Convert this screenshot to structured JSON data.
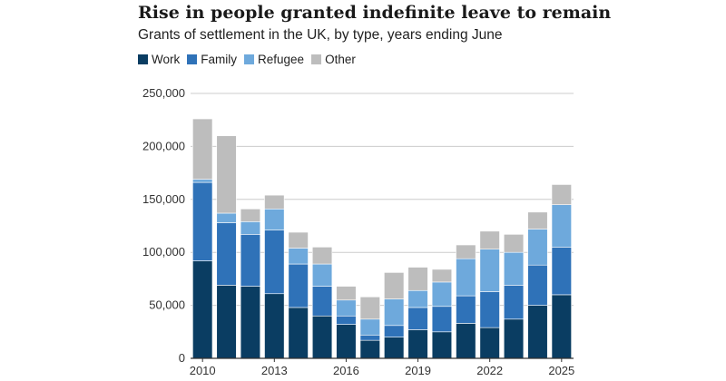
{
  "chart_data": {
    "type": "bar",
    "stacked": true,
    "title": "Rise in people granted indefinite leave to remain",
    "subtitle": "Grants of settlement in the UK, by type, years ending June",
    "xlabel": "",
    "ylabel": "",
    "ylim": [
      0,
      250000
    ],
    "yticks": [
      0,
      50000,
      100000,
      150000,
      200000,
      250000
    ],
    "ytick_labels": [
      "0",
      "50,000",
      "100,000",
      "150,000",
      "200,000",
      "250,000"
    ],
    "xtick_labels": [
      "2010",
      "2013",
      "2016",
      "2019",
      "2022",
      "2025"
    ],
    "categories": [
      "2010",
      "2011",
      "2012",
      "2013",
      "2014",
      "2015",
      "2016",
      "2017",
      "2018",
      "2019",
      "2020",
      "2021",
      "2022",
      "2023",
      "2024",
      "2025"
    ],
    "legend_position": "top-left",
    "grid": true,
    "series": [
      {
        "name": "Work",
        "color": "#0a3d62",
        "values": [
          92000,
          69000,
          68000,
          61000,
          48000,
          40000,
          32000,
          17000,
          20000,
          27000,
          25000,
          33000,
          29000,
          37000,
          50000,
          60000
        ]
      },
      {
        "name": "Family",
        "color": "#2f72b8",
        "values": [
          74000,
          59000,
          49000,
          60000,
          41000,
          28000,
          8000,
          5000,
          11000,
          21000,
          24000,
          26000,
          34000,
          32000,
          38000,
          45000
        ]
      },
      {
        "name": "Refugee",
        "color": "#6ea9dc",
        "values": [
          3000,
          9000,
          12000,
          20000,
          15000,
          21000,
          15000,
          15000,
          25000,
          16000,
          23000,
          35000,
          40000,
          31000,
          34000,
          40000
        ]
      },
      {
        "name": "Other",
        "color": "#bdbdbd",
        "values": [
          57000,
          73000,
          12000,
          13000,
          15000,
          16000,
          13000,
          21000,
          25000,
          22000,
          12000,
          13000,
          17000,
          17000,
          16000,
          19000
        ]
      }
    ]
  }
}
